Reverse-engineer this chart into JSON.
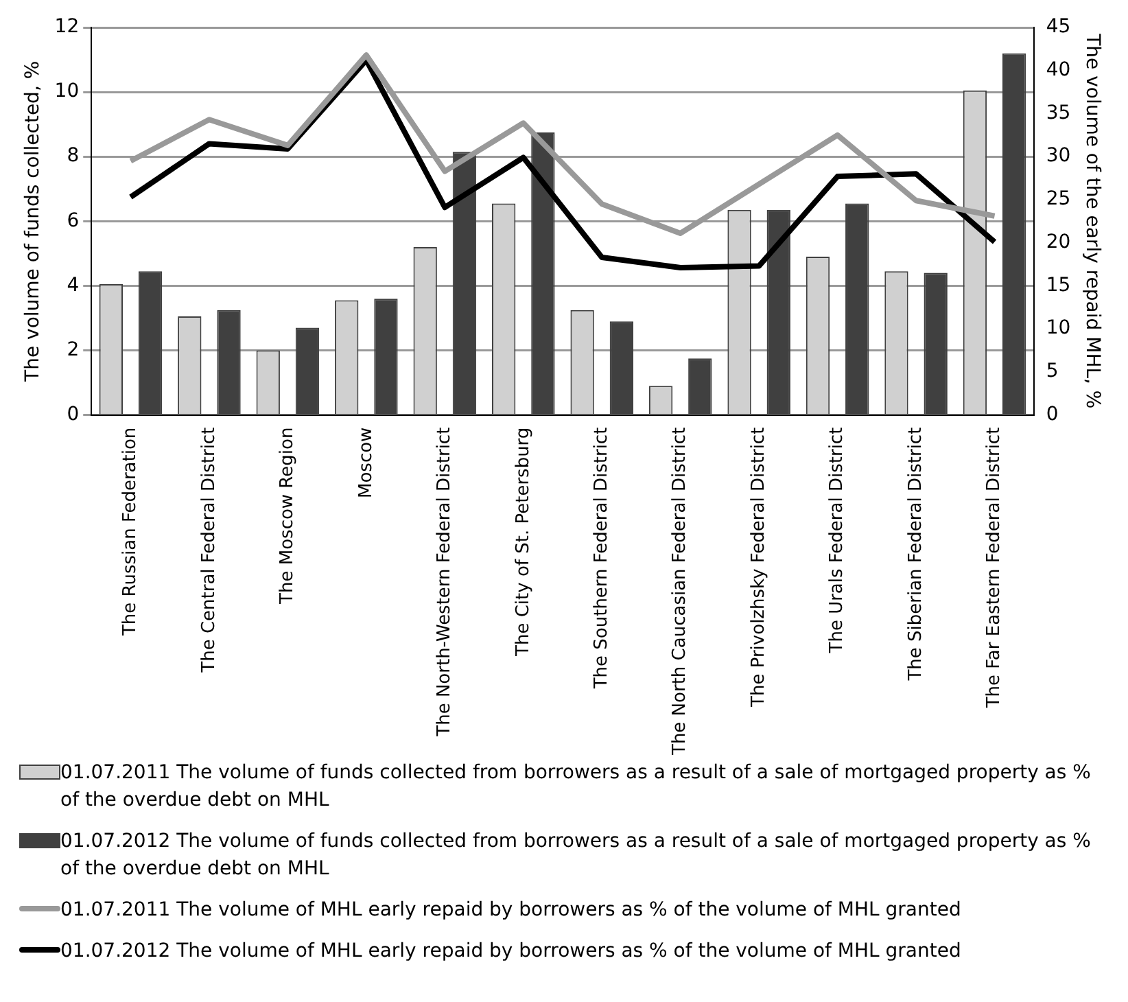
{
  "chart_data": {
    "type": "bar",
    "ylabel": "The volume of funds collected, %",
    "y2label": "The volume of the early repaid MHL, %",
    "categories": [
      "The Russian Federation",
      "The Central Federal District",
      "The Moscow Region",
      "Moscow",
      "The North-Western Federal District",
      "The City of St. Petersburg",
      "The Southern Federal District",
      "The North Caucasian Federal District",
      "The Privolzhsky Federal District",
      "The Urals Federal District",
      "The Siberian Federal District",
      "The Far Eastern Federal District"
    ],
    "series": [
      {
        "name": "01.07.2011 The volume of funds collected from borrowers as a result of a sale of mortgaged property as % of the overdue debt on MHL",
        "color": "#d0d0d0",
        "values": [
          4.05,
          3.05,
          2.0,
          3.55,
          5.2,
          6.55,
          3.25,
          0.9,
          6.35,
          4.9,
          4.45,
          10.05
        ]
      },
      {
        "name": "01.07.2012 The volume of funds collected from borrowers as a result of a sale of mortgaged property as % of the overdue debt on MHL",
        "color": "#404040",
        "values": [
          4.45,
          3.25,
          2.7,
          3.6,
          8.15,
          8.75,
          2.9,
          1.75,
          6.35,
          6.55,
          4.4,
          11.2
        ]
      },
      {
        "name": "01.07.2011 The volume of MHL early repaid by borrowers as % of the volume of MHL granted",
        "type": "line",
        "axis": "y2",
        "color": "#999999",
        "values": [
          29.5,
          34.3,
          31.3,
          41.8,
          28.3,
          33.9,
          24.5,
          21.1,
          26.8,
          32.5,
          24.9,
          23.1
        ]
      },
      {
        "name": "01.07.2012 The volume of MHL early repaid by borrowers as % of the volume of MHL granted",
        "type": "line",
        "axis": "y2",
        "color": "#000000",
        "values": [
          25.3,
          31.5,
          30.9,
          41.2,
          24.1,
          29.9,
          18.3,
          17.1,
          17.3,
          27.7,
          28.0,
          20.1
        ]
      }
    ],
    "ylim": [
      0,
      12
    ],
    "yticks": [
      0,
      2,
      4,
      6,
      8,
      10,
      12
    ],
    "y2lim": [
      0,
      45
    ],
    "y2ticks": [
      0,
      5,
      10,
      15,
      20,
      25,
      30,
      35,
      40,
      45
    ],
    "grid": "y",
    "legend": "bottom",
    "marker": "none",
    "line_style": "solid"
  }
}
